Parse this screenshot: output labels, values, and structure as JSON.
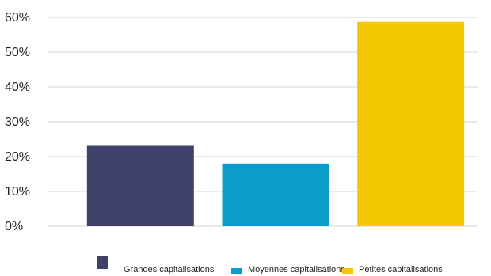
{
  "chart_data": {
    "type": "bar",
    "title": "",
    "xlabel": "",
    "ylabel": "",
    "categories": [
      "Grandes capitalisations",
      "Moyennes capitalisations",
      "Petites capitalisations"
    ],
    "values": [
      0.233,
      0.18,
      0.587
    ],
    "colors": [
      "#3f416a",
      "#0a9cca",
      "#f4c800"
    ],
    "ylim": [
      0,
      0.6
    ],
    "yticks": [
      "0%",
      "10%",
      "20%",
      "30%",
      "40%",
      "50%",
      "60%"
    ],
    "grid": true,
    "legend": {
      "position": "bottom",
      "entries": [
        "Grandes capitalisations",
        "Moyennes capitalisations",
        "Petites capitalisations"
      ]
    }
  }
}
